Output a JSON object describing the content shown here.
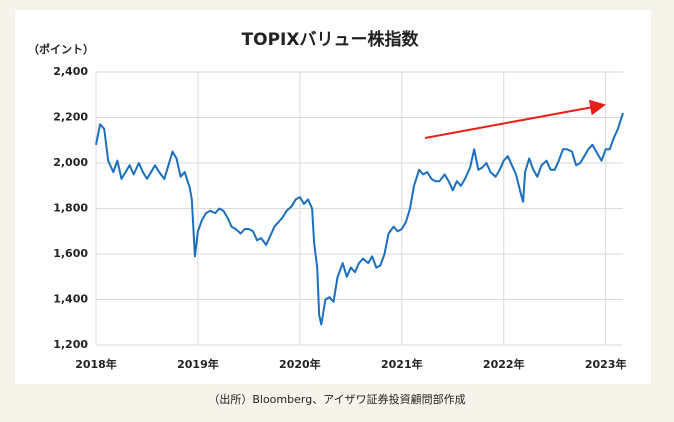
{
  "chart_data": {
    "type": "line",
    "title": "TOPIXバリュー株指数",
    "y_label": "（ポイント）",
    "source": "（出所）Bloomberg、アイザワ証券投資顧問部作成",
    "color": "#1a6fbf",
    "grid": true,
    "xlim": [
      2018,
      2023.17
    ],
    "ylim": [
      1200,
      2400
    ],
    "xticks": [
      {
        "value": 2018,
        "label": "2018年"
      },
      {
        "value": 2019,
        "label": "2019年"
      },
      {
        "value": 2020,
        "label": "2020年"
      },
      {
        "value": 2021,
        "label": "2021年"
      },
      {
        "value": 2022,
        "label": "2022年"
      },
      {
        "value": 2023,
        "label": "2023年"
      }
    ],
    "yticks": [
      {
        "value": 1200,
        "label": "1,200"
      },
      {
        "value": 1400,
        "label": "1,400"
      },
      {
        "value": 1600,
        "label": "1,600"
      },
      {
        "value": 1800,
        "label": "1,800"
      },
      {
        "value": 2000,
        "label": "2,000"
      },
      {
        "value": 2200,
        "label": "2,200"
      },
      {
        "value": 2400,
        "label": "2,400"
      }
    ],
    "x": [
      2018.0,
      2018.04,
      2018.08,
      2018.12,
      2018.17,
      2018.21,
      2018.25,
      2018.29,
      2018.33,
      2018.37,
      2018.42,
      2018.46,
      2018.5,
      2018.54,
      2018.58,
      2018.62,
      2018.67,
      2018.71,
      2018.75,
      2018.79,
      2018.83,
      2018.87,
      2018.92,
      2018.94,
      2018.97,
      2019.0,
      2019.04,
      2019.08,
      2019.12,
      2019.17,
      2019.21,
      2019.25,
      2019.29,
      2019.33,
      2019.37,
      2019.42,
      2019.46,
      2019.5,
      2019.54,
      2019.58,
      2019.62,
      2019.67,
      2019.71,
      2019.75,
      2019.79,
      2019.83,
      2019.87,
      2019.92,
      2019.96,
      2020.0,
      2020.04,
      2020.08,
      2020.12,
      2020.14,
      2020.17,
      2020.19,
      2020.21,
      2020.25,
      2020.29,
      2020.33,
      2020.37,
      2020.42,
      2020.46,
      2020.5,
      2020.54,
      2020.58,
      2020.62,
      2020.67,
      2020.71,
      2020.75,
      2020.79,
      2020.83,
      2020.87,
      2020.92,
      2020.96,
      2021.0,
      2021.04,
      2021.08,
      2021.12,
      2021.17,
      2021.21,
      2021.25,
      2021.29,
      2021.33,
      2021.37,
      2021.42,
      2021.46,
      2021.5,
      2021.54,
      2021.58,
      2021.62,
      2021.67,
      2021.71,
      2021.75,
      2021.79,
      2021.83,
      2021.87,
      2021.92,
      2021.96,
      2022.0,
      2022.04,
      2022.08,
      2022.12,
      2022.17,
      2022.19,
      2022.21,
      2022.25,
      2022.29,
      2022.33,
      2022.37,
      2022.42,
      2022.46,
      2022.5,
      2022.54,
      2022.58,
      2022.62,
      2022.67,
      2022.71,
      2022.75,
      2022.79,
      2022.83,
      2022.87,
      2022.92,
      2022.96,
      2023.0,
      2023.04,
      2023.08,
      2023.12,
      2023.17
    ],
    "values": [
      2080,
      2170,
      2150,
      2010,
      1960,
      2010,
      1930,
      1960,
      1990,
      1950,
      2000,
      1960,
      1930,
      1960,
      1990,
      1960,
      1930,
      1990,
      2050,
      2020,
      1940,
      1960,
      1890,
      1840,
      1590,
      1700,
      1750,
      1780,
      1790,
      1780,
      1800,
      1790,
      1760,
      1720,
      1710,
      1690,
      1710,
      1710,
      1700,
      1660,
      1670,
      1640,
      1680,
      1720,
      1740,
      1760,
      1790,
      1810,
      1840,
      1850,
      1820,
      1840,
      1800,
      1650,
      1540,
      1330,
      1290,
      1400,
      1410,
      1390,
      1500,
      1560,
      1500,
      1540,
      1520,
      1560,
      1580,
      1560,
      1590,
      1540,
      1550,
      1600,
      1690,
      1720,
      1700,
      1710,
      1740,
      1800,
      1900,
      1970,
      1950,
      1960,
      1930,
      1920,
      1920,
      1950,
      1920,
      1880,
      1920,
      1900,
      1930,
      1980,
      2060,
      1970,
      1980,
      2000,
      1960,
      1940,
      1970,
      2010,
      2030,
      1990,
      1950,
      1860,
      1830,
      1960,
      2020,
      1970,
      1940,
      1990,
      2010,
      1970,
      1970,
      2010,
      2060,
      2060,
      2050,
      1990,
      2000,
      2030,
      2060,
      2080,
      2040,
      2010,
      2060,
      2060,
      2110,
      2150,
      2220
    ]
  }
}
